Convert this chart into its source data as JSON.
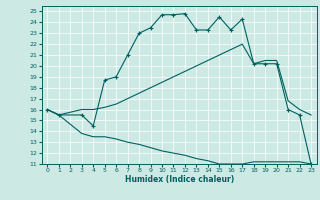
{
  "xlabel": "Humidex (Indice chaleur)",
  "bg_color": "#cce9e4",
  "line_color": "#006060",
  "grid_color": "#ffffff",
  "xlim": [
    -0.5,
    23.5
  ],
  "ylim": [
    11,
    25.5
  ],
  "xticks": [
    0,
    1,
    2,
    3,
    4,
    5,
    6,
    7,
    8,
    9,
    10,
    11,
    12,
    13,
    14,
    15,
    16,
    17,
    18,
    19,
    20,
    21,
    22,
    23
  ],
  "yticks": [
    11,
    12,
    13,
    14,
    15,
    16,
    17,
    18,
    19,
    20,
    21,
    22,
    23,
    24,
    25
  ],
  "line1_x": [
    0,
    1,
    3,
    4,
    5,
    6,
    7,
    8,
    9,
    10,
    11,
    12,
    13,
    14,
    15,
    16,
    17,
    18,
    19,
    20,
    21,
    22,
    23
  ],
  "line1_y": [
    16,
    15.5,
    15.5,
    14.5,
    18.7,
    19.0,
    21.0,
    23.0,
    23.5,
    24.7,
    24.7,
    24.8,
    23.3,
    23.3,
    24.5,
    23.3,
    24.3,
    20.2,
    20.2,
    20.2,
    16.0,
    15.5,
    11.0
  ],
  "line2_x": [
    0,
    1,
    3,
    4,
    5,
    6,
    7,
    8,
    9,
    10,
    11,
    12,
    13,
    14,
    15,
    16,
    17,
    18,
    19,
    20,
    21,
    22,
    23
  ],
  "line2_y": [
    16.0,
    15.5,
    16.0,
    16.0,
    16.2,
    16.5,
    17.0,
    17.5,
    18.0,
    18.5,
    19.0,
    19.5,
    20.0,
    20.5,
    21.0,
    21.5,
    22.0,
    20.2,
    20.5,
    20.5,
    16.8,
    16.0,
    15.5
  ],
  "line3_x": [
    0,
    1,
    3,
    4,
    5,
    6,
    7,
    8,
    9,
    10,
    11,
    12,
    13,
    14,
    15,
    16,
    17,
    18,
    19,
    20,
    21,
    22,
    23
  ],
  "line3_y": [
    16.0,
    15.5,
    13.8,
    13.5,
    13.5,
    13.3,
    13.0,
    12.8,
    12.5,
    12.2,
    12.0,
    11.8,
    11.5,
    11.3,
    11.0,
    11.0,
    11.0,
    11.2,
    11.2,
    11.2,
    11.2,
    11.2,
    11.0
  ]
}
